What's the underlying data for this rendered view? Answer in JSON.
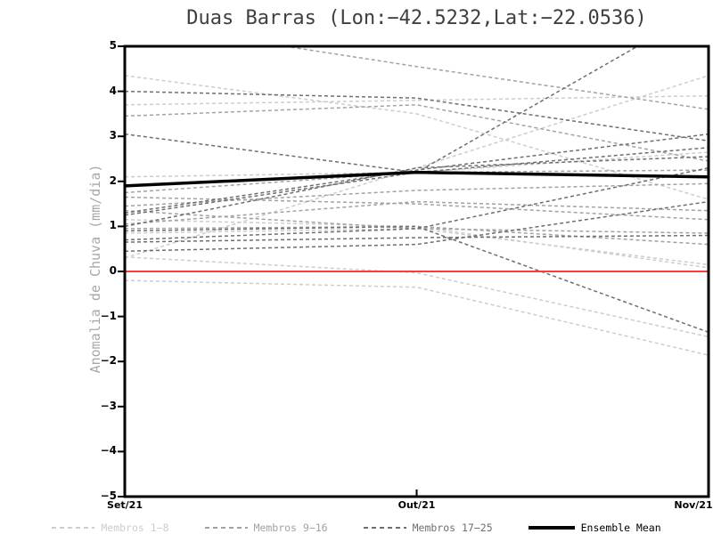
{
  "chart_data": {
    "type": "line",
    "title": "Duas Barras (Lon:−42.5232,Lat:−22.0536)",
    "ylabel": "Anomalia de Chuva (mm/dia)",
    "x_categories": [
      "Set/21",
      "Out/21",
      "Nov/21"
    ],
    "ylim": [
      -5,
      5
    ],
    "yticks": [
      -5,
      -4,
      -3,
      -2,
      -1,
      0,
      1,
      2,
      3,
      4,
      5
    ],
    "grid": false,
    "legend_position": "bottom",
    "frame_color": "#000000",
    "zero_line": {
      "name": "zero-reference",
      "color": "#fa3c3c",
      "values": [
        0,
        0,
        0
      ]
    },
    "groups": [
      {
        "label": "Membros 1−8",
        "color": "#cdcdcd"
      },
      {
        "label": "Membros 9−16",
        "color": "#a2a2a2"
      },
      {
        "label": "Membros 17−25",
        "color": "#6e6e6e"
      }
    ],
    "mean": {
      "label": "Ensemble Mean",
      "color": "#000000",
      "values": [
        1.9,
        2.2,
        2.1
      ]
    },
    "members": [
      {
        "name": "m01",
        "group": 0,
        "values": [
          4.35,
          3.5,
          1.6
        ]
      },
      {
        "name": "m02",
        "group": 0,
        "values": [
          3.7,
          3.8,
          3.9
        ]
      },
      {
        "name": "m03",
        "group": 0,
        "values": [
          0.3,
          2.3,
          4.35
        ]
      },
      {
        "name": "m04",
        "group": 0,
        "values": [
          2.1,
          2.2,
          2.65
        ]
      },
      {
        "name": "m05",
        "group": 0,
        "values": [
          0.32,
          -0.03,
          -1.45
        ]
      },
      {
        "name": "m06",
        "group": 0,
        "values": [
          0.85,
          0.95,
          0.15
        ]
      },
      {
        "name": "m07",
        "group": 0,
        "values": [
          1.15,
          1.0,
          0.08
        ]
      },
      {
        "name": "m08",
        "group": 0,
        "values": [
          -0.2,
          -0.35,
          -1.86
        ]
      },
      {
        "name": "m09",
        "group": 1,
        "values": [
          3.45,
          3.7,
          2.45
        ]
      },
      {
        "name": "m10",
        "group": 1,
        "values": [
          5.55,
          4.55,
          3.6
        ]
      },
      {
        "name": "m11",
        "group": 1,
        "values": [
          1.75,
          2.2,
          2.25
        ]
      },
      {
        "name": "m12",
        "group": 1,
        "values": [
          1.65,
          1.5,
          1.15
        ]
      },
      {
        "name": "m13",
        "group": 1,
        "values": [
          1.45,
          1.8,
          1.95
        ]
      },
      {
        "name": "m14",
        "group": 1,
        "values": [
          1.35,
          0.95,
          0.85
        ]
      },
      {
        "name": "m15",
        "group": 1,
        "values": [
          1.05,
          1.55,
          1.35
        ]
      },
      {
        "name": "m16",
        "group": 1,
        "values": [
          0.95,
          1.0,
          0.6
        ]
      },
      {
        "name": "m17",
        "group": 2,
        "values": [
          4.0,
          3.85,
          2.9
        ]
      },
      {
        "name": "m18",
        "group": 2,
        "values": [
          3.05,
          2.2,
          5.9
        ]
      },
      {
        "name": "m19",
        "group": 2,
        "values": [
          1.3,
          2.25,
          3.05
        ]
      },
      {
        "name": "m20",
        "group": 2,
        "values": [
          1.25,
          2.2,
          2.75
        ]
      },
      {
        "name": "m21",
        "group": 2,
        "values": [
          1.0,
          2.3,
          2.55
        ]
      },
      {
        "name": "m22",
        "group": 2,
        "values": [
          0.9,
          1.0,
          -1.35
        ]
      },
      {
        "name": "m23",
        "group": 2,
        "values": [
          0.7,
          0.95,
          2.3
        ]
      },
      {
        "name": "m24",
        "group": 2,
        "values": [
          0.65,
          0.75,
          0.8
        ]
      },
      {
        "name": "m25",
        "group": 2,
        "values": [
          0.45,
          0.6,
          1.55
        ]
      }
    ]
  }
}
